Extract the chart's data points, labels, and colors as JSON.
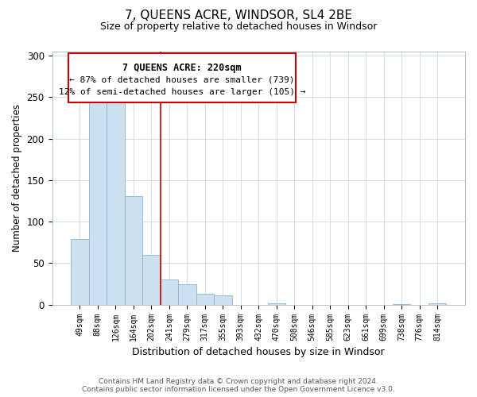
{
  "title": "7, QUEENS ACRE, WINDSOR, SL4 2BE",
  "subtitle": "Size of property relative to detached houses in Windsor",
  "xlabel": "Distribution of detached houses by size in Windsor",
  "ylabel": "Number of detached properties",
  "footer_line1": "Contains HM Land Registry data © Crown copyright and database right 2024.",
  "footer_line2": "Contains public sector information licensed under the Open Government Licence v3.0.",
  "categories": [
    "49sqm",
    "88sqm",
    "126sqm",
    "164sqm",
    "202sqm",
    "241sqm",
    "279sqm",
    "317sqm",
    "355sqm",
    "393sqm",
    "432sqm",
    "470sqm",
    "508sqm",
    "546sqm",
    "585sqm",
    "623sqm",
    "661sqm",
    "699sqm",
    "738sqm",
    "776sqm",
    "814sqm"
  ],
  "values": [
    79,
    250,
    247,
    131,
    60,
    30,
    25,
    13,
    11,
    0,
    0,
    2,
    0,
    0,
    0,
    0,
    0,
    0,
    1,
    0,
    2
  ],
  "bar_color": "#cce0f0",
  "bar_edge_color": "#8ab4d4",
  "vline_x": 4.5,
  "vline_color": "#cc0000",
  "annotation_title": "7 QUEENS ACRE: 220sqm",
  "annotation_line1": "← 87% of detached houses are smaller (739)",
  "annotation_line2": "12% of semi-detached houses are larger (105) →",
  "ylim": [
    0,
    305
  ],
  "yticks": [
    0,
    50,
    100,
    150,
    200,
    250,
    300
  ]
}
